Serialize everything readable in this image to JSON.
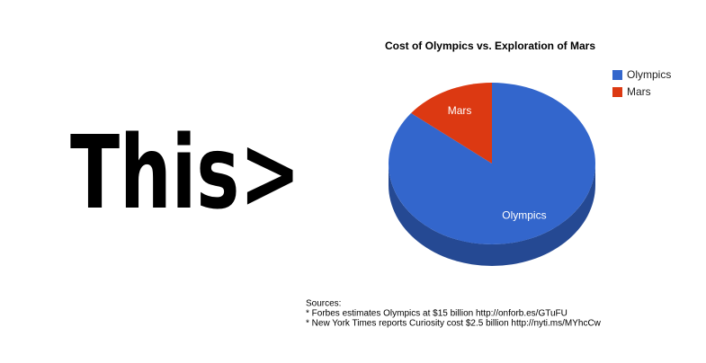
{
  "headline": "This>",
  "chart_data": {
    "type": "pie",
    "title": "Cost of Olympics vs. Exploration of Mars",
    "categories": [
      "Olympics",
      "Mars"
    ],
    "values": [
      15,
      2.5
    ],
    "colors": [
      "#3366cc",
      "#dc3912"
    ],
    "legend": "right"
  },
  "sources": {
    "heading": "Sources:",
    "lines": [
      "* Forbes estimates Olympics at $15 billion http://onforb.es/GTuFU",
      "* New York Times reports Curiosity cost $2.5 billion http://nyti.ms/MYhcCw"
    ]
  }
}
